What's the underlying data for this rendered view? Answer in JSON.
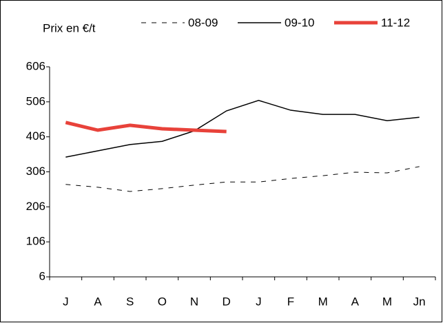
{
  "chart_data": {
    "type": "line",
    "y_label": "Prix en €/t",
    "categories": [
      "J",
      "A",
      "S",
      "O",
      "N",
      "D",
      "J",
      "F",
      "M",
      "A",
      "M",
      "Jn"
    ],
    "series": [
      {
        "name": "08-09",
        "color": "#000000",
        "dash": "dashed",
        "width": 1,
        "values": [
          270,
          262,
          250,
          258,
          268,
          277,
          277,
          287,
          295,
          305,
          303,
          321
        ]
      },
      {
        "name": "09-10",
        "color": "#000000",
        "dash": "solid",
        "width": 1.5,
        "values": [
          348,
          366,
          384,
          393,
          423,
          480,
          510,
          482,
          470,
          470,
          452,
          462
        ]
      },
      {
        "name": "11-12",
        "color": "#e8423a",
        "dash": "solid",
        "width": 5,
        "values": [
          447,
          425,
          439,
          429,
          425,
          421,
          null,
          null,
          null,
          null,
          null,
          null
        ]
      }
    ],
    "ylim": [
      6,
      606
    ],
    "yticks": [
      6,
      106,
      206,
      306,
      406,
      506,
      606
    ],
    "grid": false
  }
}
